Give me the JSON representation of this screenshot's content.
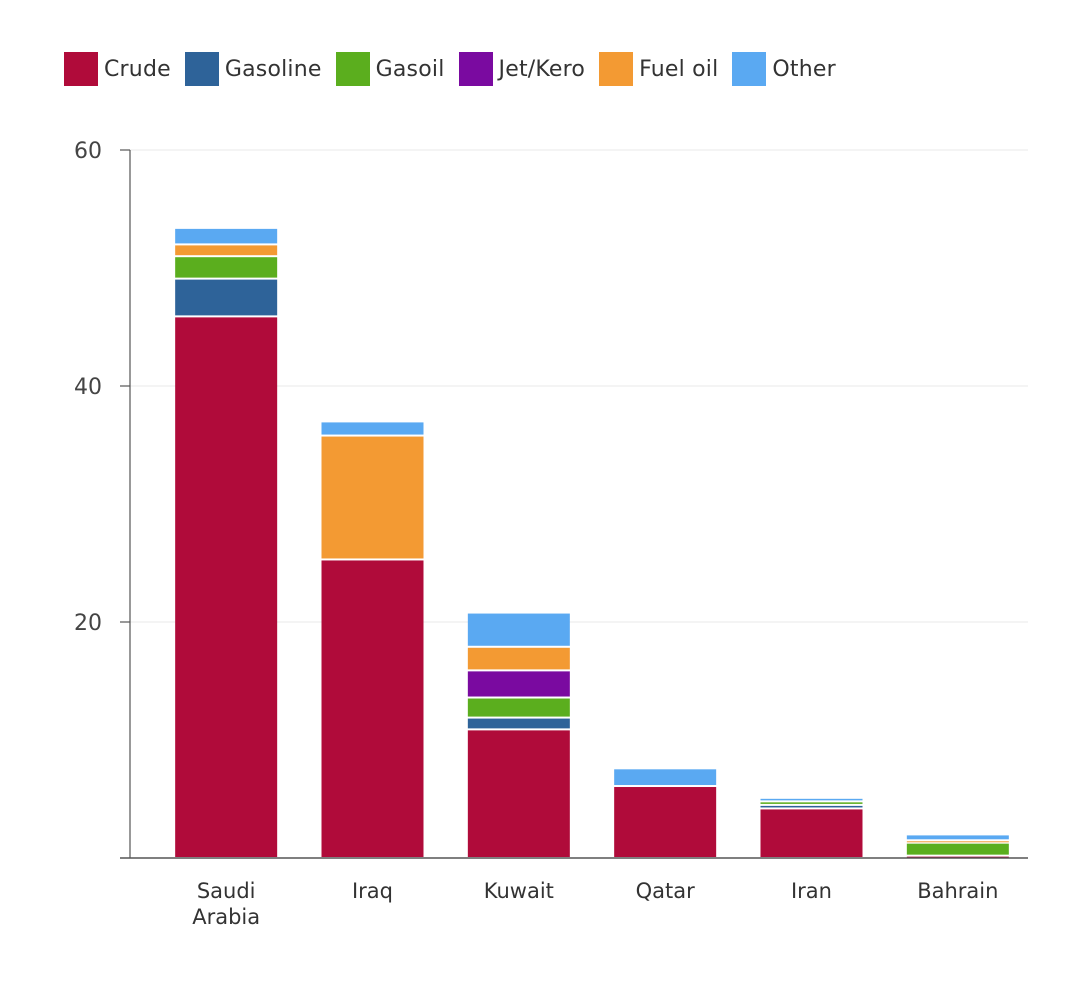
{
  "chart_data": {
    "type": "bar",
    "stacked": true,
    "title": "",
    "xlabel": "",
    "ylabel": "",
    "ylim": [
      0,
      60
    ],
    "yticks": [
      20,
      40,
      60
    ],
    "grid": true,
    "legend_position": "top-left",
    "categories": [
      "Saudi Arabia",
      "Iraq",
      "Kuwait",
      "Qatar",
      "Iran",
      "Bahrain"
    ],
    "category_lines": [
      [
        "Saudi",
        "Arabia"
      ],
      [
        "Iraq"
      ],
      [
        "Kuwait"
      ],
      [
        "Qatar"
      ],
      [
        "Iran"
      ],
      [
        "Bahrain"
      ]
    ],
    "series": [
      {
        "name": "Crude",
        "color": "#B00B3A",
        "values": [
          45.9,
          25.3,
          10.9,
          6.1,
          4.2,
          0.2
        ]
      },
      {
        "name": "Gasoline",
        "color": "#2E6399",
        "values": [
          3.2,
          0,
          1.0,
          0,
          0.3,
          0
        ]
      },
      {
        "name": "Gasoil",
        "color": "#5BAE1E",
        "values": [
          1.9,
          0,
          1.7,
          0,
          0.3,
          1.1
        ]
      },
      {
        "name": "Jet/Kero",
        "color": "#7A0AA0",
        "values": [
          0,
          0,
          2.3,
          0,
          0,
          0
        ]
      },
      {
        "name": "Fuel oil",
        "color": "#F39A33",
        "values": [
          1.0,
          10.5,
          2.0,
          0,
          0,
          0.2
        ]
      },
      {
        "name": "Other",
        "color": "#5AA9F2",
        "values": [
          1.4,
          1.2,
          2.9,
          1.5,
          0.3,
          0.5
        ]
      }
    ]
  },
  "legend": [
    {
      "label": "Crude",
      "color": "#B00B3A"
    },
    {
      "label": "Gasoline",
      "color": "#2E6399"
    },
    {
      "label": "Gasoil",
      "color": "#5BAE1E"
    },
    {
      "label": "Jet/Kero",
      "color": "#7A0AA0"
    },
    {
      "label": "Fuel oil",
      "color": "#F39A33"
    },
    {
      "label": "Other",
      "color": "#5AA9F2"
    }
  ]
}
